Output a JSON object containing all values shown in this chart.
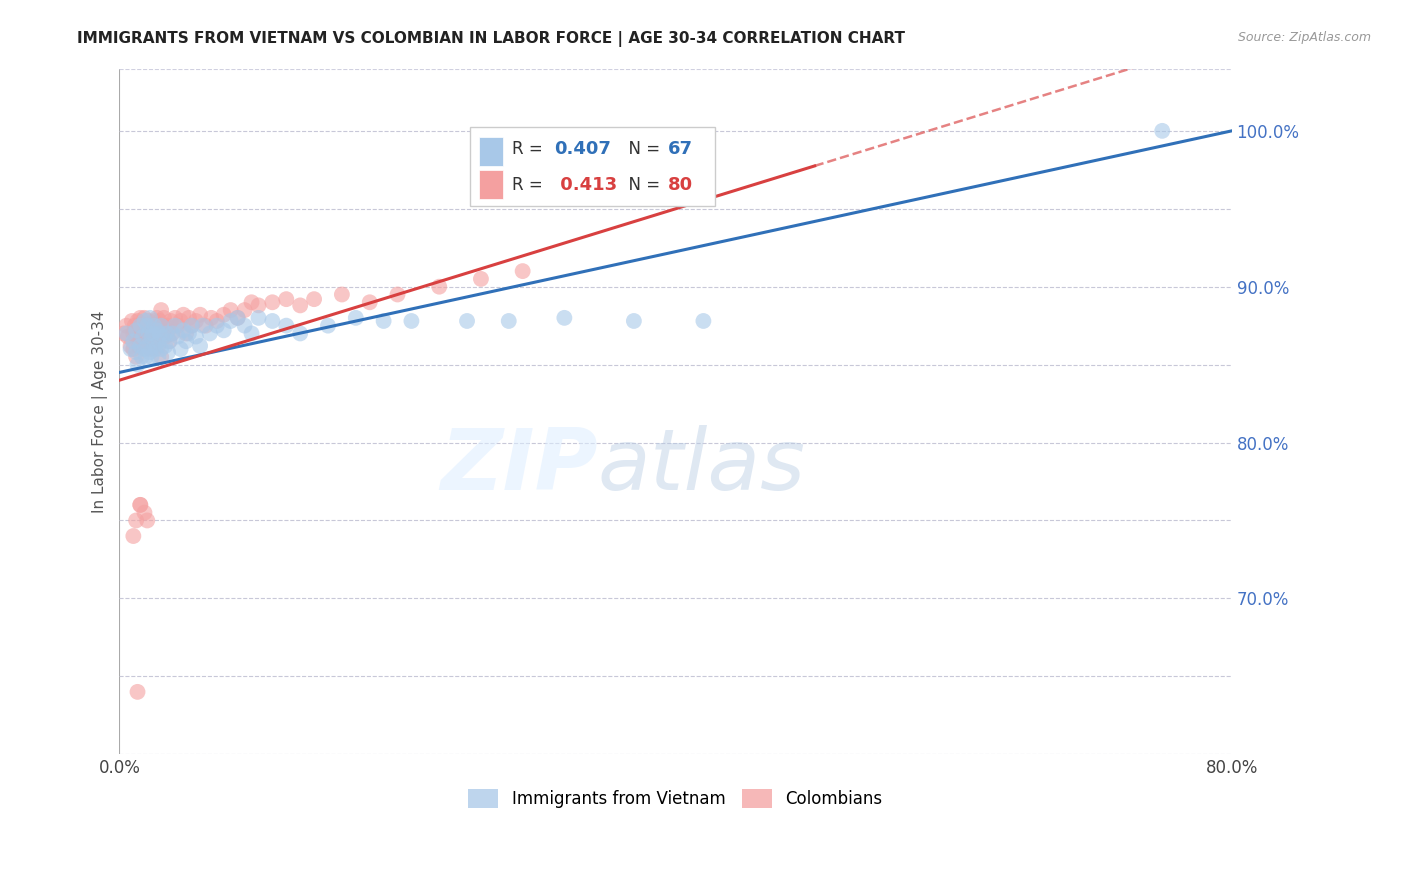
{
  "title": "IMMIGRANTS FROM VIETNAM VS COLOMBIAN IN LABOR FORCE | AGE 30-34 CORRELATION CHART",
  "source": "Source: ZipAtlas.com",
  "ylabel": "In Labor Force | Age 30-34",
  "xmin": 0.0,
  "xmax": 0.8,
  "ymin": 0.6,
  "ymax": 1.04,
  "r_vietnam": 0.407,
  "n_vietnam": 67,
  "r_colombian": 0.413,
  "n_colombian": 80,
  "vietnam_color": "#a8c8e8",
  "colombian_color": "#f4a0a0",
  "vietnam_line_color": "#3070b8",
  "colombian_line_color": "#d84040",
  "watermark_zip": "ZIP",
  "watermark_atlas": "atlas",
  "legend_label_vietnam": "Immigrants from Vietnam",
  "legend_label_colombian": "Colombians",
  "vietnam_x": [
    0.005,
    0.008,
    0.01,
    0.012,
    0.012,
    0.013,
    0.015,
    0.015,
    0.016,
    0.017,
    0.018,
    0.018,
    0.019,
    0.02,
    0.02,
    0.021,
    0.022,
    0.022,
    0.023,
    0.023,
    0.024,
    0.025,
    0.025,
    0.026,
    0.027,
    0.028,
    0.028,
    0.029,
    0.03,
    0.03,
    0.032,
    0.033,
    0.034,
    0.035,
    0.036,
    0.038,
    0.04,
    0.042,
    0.044,
    0.046,
    0.048,
    0.05,
    0.052,
    0.055,
    0.058,
    0.06,
    0.065,
    0.07,
    0.075,
    0.08,
    0.085,
    0.09,
    0.095,
    0.1,
    0.11,
    0.12,
    0.13,
    0.15,
    0.17,
    0.19,
    0.21,
    0.25,
    0.28,
    0.32,
    0.37,
    0.42,
    0.75
  ],
  "vietnam_y": [
    0.87,
    0.86,
    0.865,
    0.872,
    0.858,
    0.85,
    0.875,
    0.862,
    0.855,
    0.868,
    0.878,
    0.86,
    0.855,
    0.875,
    0.862,
    0.87,
    0.88,
    0.858,
    0.868,
    0.855,
    0.87,
    0.875,
    0.862,
    0.86,
    0.872,
    0.865,
    0.855,
    0.87,
    0.875,
    0.86,
    0.868,
    0.862,
    0.87,
    0.858,
    0.865,
    0.87,
    0.875,
    0.868,
    0.86,
    0.872,
    0.865,
    0.87,
    0.875,
    0.868,
    0.862,
    0.875,
    0.87,
    0.875,
    0.872,
    0.878,
    0.88,
    0.875,
    0.87,
    0.88,
    0.878,
    0.875,
    0.87,
    0.875,
    0.88,
    0.878,
    0.878,
    0.878,
    0.878,
    0.88,
    0.878,
    0.878,
    1.0
  ],
  "colombian_x": [
    0.003,
    0.005,
    0.006,
    0.008,
    0.009,
    0.01,
    0.01,
    0.011,
    0.012,
    0.012,
    0.013,
    0.014,
    0.014,
    0.015,
    0.015,
    0.016,
    0.017,
    0.018,
    0.018,
    0.019,
    0.02,
    0.02,
    0.021,
    0.022,
    0.022,
    0.023,
    0.024,
    0.025,
    0.025,
    0.026,
    0.027,
    0.028,
    0.028,
    0.029,
    0.03,
    0.03,
    0.031,
    0.032,
    0.033,
    0.034,
    0.035,
    0.036,
    0.037,
    0.038,
    0.04,
    0.042,
    0.044,
    0.046,
    0.048,
    0.05,
    0.052,
    0.055,
    0.058,
    0.062,
    0.066,
    0.07,
    0.075,
    0.08,
    0.085,
    0.09,
    0.095,
    0.1,
    0.11,
    0.12,
    0.13,
    0.14,
    0.16,
    0.18,
    0.2,
    0.23,
    0.26,
    0.29,
    0.03,
    0.015,
    0.012,
    0.01,
    0.015,
    0.018,
    0.02,
    0.013
  ],
  "colombian_y": [
    0.87,
    0.875,
    0.868,
    0.862,
    0.878,
    0.87,
    0.86,
    0.875,
    0.868,
    0.855,
    0.878,
    0.87,
    0.862,
    0.88,
    0.87,
    0.875,
    0.868,
    0.88,
    0.87,
    0.862,
    0.875,
    0.865,
    0.878,
    0.87,
    0.86,
    0.875,
    0.868,
    0.878,
    0.862,
    0.87,
    0.88,
    0.875,
    0.862,
    0.878,
    0.885,
    0.87,
    0.875,
    0.88,
    0.868,
    0.875,
    0.872,
    0.865,
    0.878,
    0.87,
    0.88,
    0.875,
    0.878,
    0.882,
    0.87,
    0.88,
    0.875,
    0.878,
    0.882,
    0.875,
    0.88,
    0.878,
    0.882,
    0.885,
    0.88,
    0.885,
    0.89,
    0.888,
    0.89,
    0.892,
    0.888,
    0.892,
    0.895,
    0.89,
    0.895,
    0.9,
    0.905,
    0.91,
    0.855,
    0.76,
    0.75,
    0.74,
    0.76,
    0.755,
    0.75,
    0.64
  ]
}
